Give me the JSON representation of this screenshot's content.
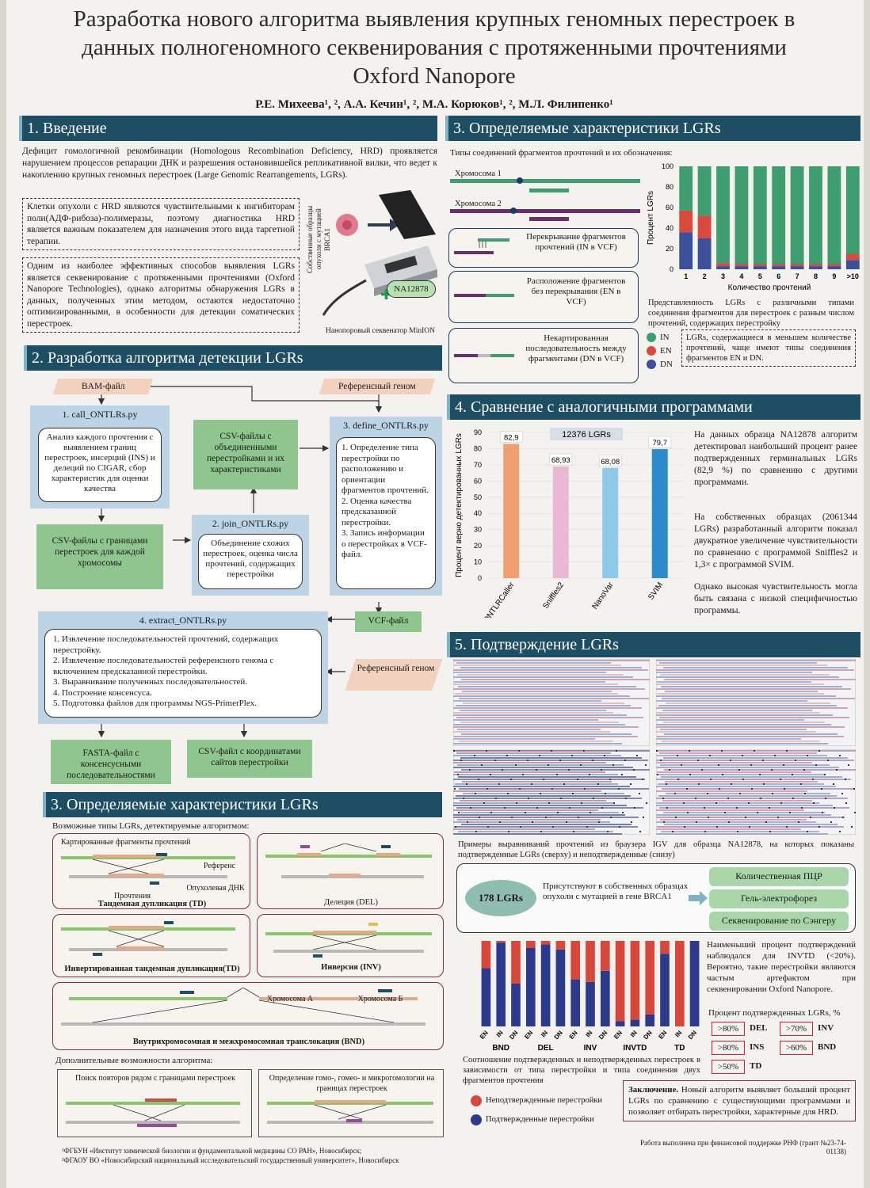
{
  "title": "Разработка нового алгоритма выявления крупных геномных перестроек в данных полногеномного секвенирования с протяженными прочтениями Oxford Nanopore",
  "authors": "Р.Е. Михеева¹, ², А.А. Кечин¹, ², М.А. Корюков¹, ², М.Л. Филипенко¹",
  "sec1": {
    "heading": "1. Введение",
    "intro": "Дефицит гомологичной рекомбинации (Homologous Recombination Deficiency, HRD) проявляется нарушением процессов репарации ДНК и разрешения остановившейся репликативной вилки, что ведет к накоплению крупных геномных перестроек (Large Genomic Rearrangements, LGRs).",
    "box1": "Клетки опухоли с HRD являются чувствительными к ингибиторам поли(АДФ-рибоза)-полимеразы, поэтому диагностика HRD является важным показателем для назначения этого вида таргетной терапии.",
    "box2": "Одним из наиболее эффективных способов выявления LGRs является секвенирование с протяженными прочтениями (Oxford Nanopore Technologies), однако алгоритмы обнаружения LGRs в данных, полученных этим методом, остаются недостаточно оптимизированными, в особенности для детекции соматических перестроек.",
    "vertical_label": "Собственные образцы опухоли с мутацией BRCA1",
    "sample_badge": "NA12878",
    "device_caption": "Нанопоровый секвенатор MinION"
  },
  "sec2": {
    "heading": "2. Разработка алгоритма детекции LGRs",
    "bam": "BAM-файл",
    "ref1": "Референсный геном",
    "call_title": "1. call_ONTLRs.py",
    "call_text": "Анализ каждого прочтения с выявлением границ перестроек, инсерций (INS) и делеций по CIGAR, сбор характеристик для оценки качества",
    "csv_merged": "CSV-файлы с объединенными перестройками и их характеристиками",
    "define_title": "3. define_ONTLRs.py",
    "define_steps": [
      "1. Определение типа перестройки по расположению и ориентации фрагментов прочтений.",
      "2. Оценка качества предсказанной перестройки.",
      "3. Запись информации о перестройках в VCF-файл."
    ],
    "csv_bounds": "CSV-файлы с границами перестроек для каждой хромосомы",
    "join_title": "2. join_ONTLRs.py",
    "join_text": "Объединение схожих перестроек, оценка числа прочтений, содержащих перестройки",
    "vcf": "VCF-файл",
    "extract_title": "4. extract_ONTLRs.py",
    "extract_steps": [
      "1. Извлечение последовательностей прочтений, содержащих перестройку.",
      "2. Извлечение последовательностей референсного генома с включением предсказанной перестройки.",
      "3. Выравнивание полученных последовательностей.",
      "4. Построение консенсуса.",
      "5. Подготовка файлов для программы NGS-PrimerPlex."
    ],
    "ref2": "Референсный геном",
    "fasta": "FASTA-файл с консенсусными последовательностями",
    "csv_coords": "CSV-файл с координатами сайтов перестройки"
  },
  "sec3a": {
    "heading": "3. Определяемые характеристики LGRs",
    "subtitle": "Возможные типы LGRs, детектируемые алгоритмом:",
    "td_labels": [
      "Картированные фрагменты прочтений",
      "Референс",
      "Прочтения",
      "Опухолевая ДНК"
    ],
    "td": "Тандемная дупликация (TD)",
    "del": "Делеция (DEL)",
    "invtd": "Инвертированная тандемная дупликация(TD)",
    "inv": "Инверсия (INV)",
    "chrA": "Хромосома А",
    "chrB": "Хромосома Б",
    "bnd": "Внутрихромосомная и межхромосомная транслокация (BND)",
    "extra": "Дополнительные возможности алгоритма:",
    "repeats": "Поиск повторов рядом с границами перестроек",
    "homology": "Определение гомо-, гомео- и микрогомологии на границах перестроек"
  },
  "sec3b": {
    "heading": "3. Определяемые характеристики LGRs",
    "subtitle": "Типы соединений фрагментов прочтений и их обозначения:",
    "chr1": "Хромосома 1",
    "chr2": "Хромосома 2",
    "in_desc": "Перекрывание фрагментов прочтений (IN в VCF)",
    "en_desc": "Расположение фрагментов без перекрывания (EN в VCF)",
    "dn_desc": "Некартированная последовательность между фрагментами (DN в VCF)",
    "caption": "Представленность LGRs с различными типами соединения фрагментов для перестроек с разным числом прочтений, содержащих перестройку",
    "legend": [
      "IN",
      "EN",
      "DN"
    ],
    "note": "LGRs, содержащиеся в меньшем количестве прочтений, чаще имеют типы соединения фрагментов EN и DN."
  },
  "sec4": {
    "heading": "4. Сравнение с аналогичными программами",
    "text1": "На данных образца NA12878 алгоритм детектировал наибольший процент ранее подтвержденных герминальных LGRs (82,9 %) по сравнению с другими программами.",
    "text2": "На собственных образцах (2061344 LGRs) разработанный алгоритм показал двукратное увеличение чувствительности по сравнению с программой Sniffles2 и 1,3× с программой SVIM.",
    "text3": "Однако высокая чувствительность могла быть связана с низкой специфичностью программы."
  },
  "sec5": {
    "heading": "5. Подтверждение LGRs",
    "igv_caption": "Примеры выравниваний прочтений из браузера IGV для образца NA12878, на которых показаны подтвержденные LGRs (сверху) и неподтвержденные (снизу)",
    "count": "178 LGRs",
    "present": "Присутствуют в собственных образцах опухоли с мутацией в гене BRCA1",
    "methods": [
      "Количественная ПЦР",
      "Гель-электрофорез",
      "Секвенирование по Сэнгеру"
    ],
    "lowest": "Наименьший процент подтверждений наблюдался для INVTD (<20%). Вероятно, такие перестройки являются частым артефактом при секвенировании Oxford Nanopore.",
    "pct_title": "Процент подтвержденных LGRs, %",
    "pct": [
      {
        "v": ">80%",
        "t": "DEL"
      },
      {
        "v": ">70%",
        "t": "INV"
      },
      {
        "v": ">80%",
        "t": "INS"
      },
      {
        "v": ">60%",
        "t": "BND"
      },
      {
        "v": ">50%",
        "t": "TD"
      }
    ],
    "caption": "Соотношение подтвержденных и неподтвержденных перестроек в зависимости от типа перестройки и типа соединения двух фрагментов прочтения",
    "legend_unconf": "Неподтвержденные перестройки",
    "legend_conf": "Подтвержденные перестройки",
    "conclusion_label": "Заключение.",
    "conclusion": "Новый алгоритм выявляет больший процент LGRs по сравнению с существующими программами и позволяет отбирать перестройки, характерные для HRD."
  },
  "footer": {
    "aff1": "¹ФГБУН «Институт химической биологии и фундаментальной медицины СО РАН», Новосибирск;",
    "aff2": "²ФГАОУ ВО «Новосибирский национальный исследовательский государственный университет», Новосибирск",
    "grant": "Работа выполнена при финансовой поддержке РНФ (грант №23-74-01138)"
  },
  "colors": {
    "IN": "#3f9e6f",
    "EN": "#d9493c",
    "DN": "#3b4f9a",
    "header": "#1e4e63",
    "confirmed": "#2d3a8c",
    "unconfirmed": "#d8473b"
  },
  "chart_data": [
    {
      "type": "bar",
      "stacked": true,
      "categories": [
        "1",
        "2",
        "3",
        "4",
        "5",
        "6",
        "7",
        "8",
        "9",
        ">10"
      ],
      "xlabel": "Количество прочтений",
      "ylabel": "Процент LGRs",
      "ylim": [
        0,
        100
      ],
      "series": [
        {
          "name": "DN",
          "values": [
            36,
            30,
            3,
            3,
            3,
            3,
            3,
            3,
            3,
            9
          ]
        },
        {
          "name": "EN",
          "values": [
            21,
            22,
            3,
            2,
            2,
            2,
            2,
            2,
            2,
            6
          ]
        },
        {
          "name": "IN",
          "values": [
            43,
            48,
            94,
            95,
            95,
            95,
            95,
            95,
            95,
            85
          ]
        }
      ]
    },
    {
      "type": "bar",
      "categories": [
        "ONTLRCaller",
        "Sniffles2",
        "NanoVar",
        "SVIM"
      ],
      "values": [
        82.9,
        68.93,
        68.08,
        79.7
      ],
      "labels": [
        "82,9",
        "68,93",
        "68,08",
        "79,7"
      ],
      "title": "12376 LGRs",
      "ylabel": "Процент верно детектированных LGRs",
      "ylim": [
        0,
        90
      ],
      "yticks": [
        0,
        10,
        20,
        30,
        40,
        50,
        60,
        70,
        80,
        90
      ],
      "colors": [
        "#f0a070",
        "#e9b8d5",
        "#8fc8e8",
        "#2f8ccc"
      ]
    },
    {
      "type": "bar",
      "stacked": true,
      "groups": [
        "BND",
        "DEL",
        "INV",
        "INVTD",
        "TD"
      ],
      "categories": [
        "EN",
        "IN",
        "DN",
        "EN",
        "IN",
        "DN",
        "EN",
        "IN",
        "DN",
        "EN",
        "IN",
        "DN",
        "EN",
        "IN",
        "DN"
      ],
      "ylim": [
        0,
        100
      ],
      "series": [
        {
          "name": "Подтвержденные перестройки",
          "values": [
            68,
            98,
            50,
            92,
            96,
            90,
            55,
            52,
            65,
            6,
            8,
            14,
            85,
            0,
            100
          ]
        },
        {
          "name": "Неподтвержденные перестройки",
          "values": [
            32,
            2,
            50,
            8,
            4,
            10,
            45,
            48,
            35,
            94,
            92,
            86,
            15,
            100,
            0
          ]
        }
      ]
    }
  ]
}
